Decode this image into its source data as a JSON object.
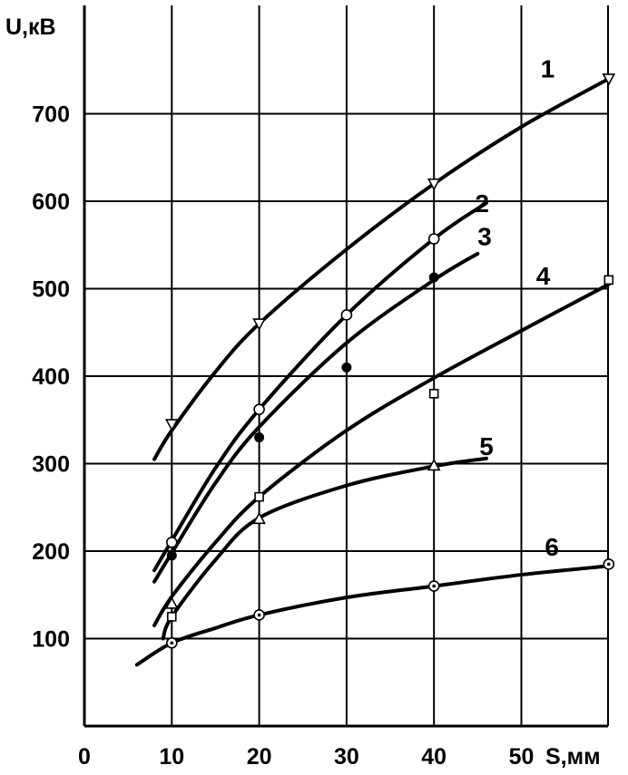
{
  "chart_data": {
    "type": "line",
    "xlabel": "S,мм",
    "ylabel": "U,кВ",
    "xlim": [
      0,
      60
    ],
    "ylim": [
      0,
      730
    ],
    "grid": true,
    "x_ticks": [
      {
        "value": 0,
        "label": "0"
      },
      {
        "value": 10,
        "label": "10"
      },
      {
        "value": 20,
        "label": "20"
      },
      {
        "value": 30,
        "label": "30"
      },
      {
        "value": 40,
        "label": "40"
      },
      {
        "value": 50,
        "label": "50"
      }
    ],
    "y_ticks": [
      {
        "value": 100,
        "label": "100"
      },
      {
        "value": 200,
        "label": "200"
      },
      {
        "value": 300,
        "label": "300"
      },
      {
        "value": 400,
        "label": "400"
      },
      {
        "value": 500,
        "label": "500"
      },
      {
        "value": 600,
        "label": "600"
      },
      {
        "value": 700,
        "label": "700"
      }
    ],
    "series": [
      {
        "id": "1",
        "curve_label": "1",
        "marker": "triangle-down",
        "points": [
          [
            10,
            345
          ],
          [
            20,
            460
          ],
          [
            40,
            620
          ],
          [
            60,
            740
          ]
        ],
        "curve": [
          [
            8,
            305
          ],
          [
            10,
            338
          ],
          [
            15,
            405
          ],
          [
            20,
            460
          ],
          [
            30,
            545
          ],
          [
            40,
            620
          ],
          [
            50,
            685
          ],
          [
            60,
            740
          ]
        ],
        "label_at": [
          53,
          752
        ]
      },
      {
        "id": "2",
        "curve_label": "2",
        "marker": "circle-open",
        "points": [
          [
            10,
            210
          ],
          [
            20,
            362
          ],
          [
            30,
            470
          ],
          [
            40,
            557
          ]
        ],
        "curve": [
          [
            8,
            178
          ],
          [
            10,
            212
          ],
          [
            15,
            295
          ],
          [
            20,
            362
          ],
          [
            30,
            470
          ],
          [
            40,
            557
          ],
          [
            46,
            598
          ]
        ],
        "label_at": [
          45.5,
          598
        ]
      },
      {
        "id": "3",
        "curve_label": "3",
        "marker": "circle-filled",
        "points": [
          [
            10,
            195
          ],
          [
            20,
            330
          ],
          [
            30,
            410
          ],
          [
            40,
            513
          ]
        ],
        "curve": [
          [
            8,
            165
          ],
          [
            10,
            198
          ],
          [
            15,
            278
          ],
          [
            20,
            342
          ],
          [
            30,
            438
          ],
          [
            40,
            510
          ],
          [
            45,
            540
          ]
        ],
        "label_at": [
          45.8,
          560
        ]
      },
      {
        "id": "4",
        "curve_label": "4",
        "marker": "square-open",
        "points": [
          [
            10,
            125
          ],
          [
            20,
            262
          ],
          [
            40,
            380
          ],
          [
            60,
            510
          ]
        ],
        "curve": [
          [
            8,
            115
          ],
          [
            10,
            148
          ],
          [
            15,
            210
          ],
          [
            20,
            262
          ],
          [
            30,
            338
          ],
          [
            40,
            398
          ],
          [
            50,
            452
          ],
          [
            60,
            505
          ]
        ],
        "label_at": [
          52.5,
          515
        ]
      },
      {
        "id": "5",
        "curve_label": "5",
        "marker": "triangle-up",
        "points": [
          [
            10,
            140
          ],
          [
            20,
            237
          ],
          [
            40,
            298
          ]
        ],
        "curve": [
          [
            9,
            100
          ],
          [
            10,
            125
          ],
          [
            15,
            190
          ],
          [
            20,
            238
          ],
          [
            30,
            275
          ],
          [
            40,
            297
          ],
          [
            46,
            306
          ]
        ],
        "label_at": [
          46,
          320
        ]
      },
      {
        "id": "6",
        "curve_label": "6",
        "marker": "circle-dot",
        "points": [
          [
            10,
            95
          ],
          [
            20,
            127
          ],
          [
            40,
            160
          ],
          [
            60,
            185
          ]
        ],
        "curve": [
          [
            6,
            70
          ],
          [
            10,
            95
          ],
          [
            15,
            112
          ],
          [
            20,
            127
          ],
          [
            30,
            147
          ],
          [
            40,
            160
          ],
          [
            50,
            173
          ],
          [
            60,
            183
          ]
        ],
        "label_at": [
          53.5,
          205
        ]
      }
    ]
  }
}
